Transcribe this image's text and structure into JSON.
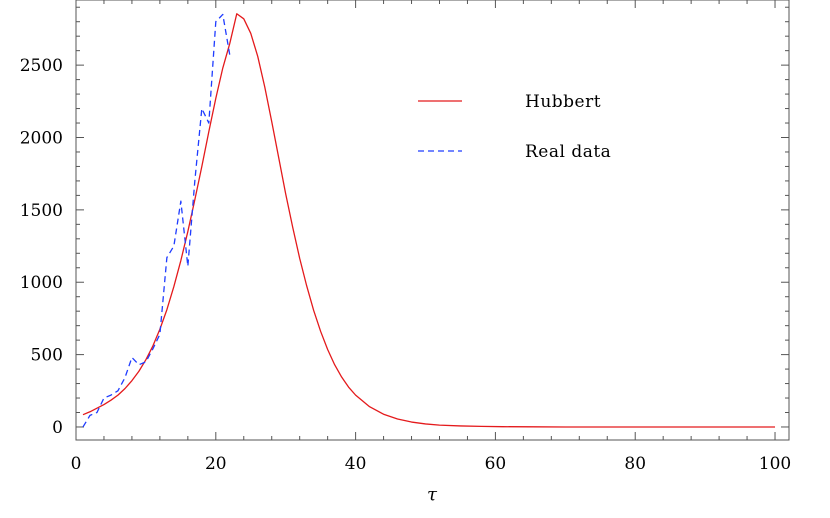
{
  "chart_data": {
    "type": "line",
    "title": "",
    "xlabel": "τ",
    "ylabel": "",
    "xlim": [
      0,
      102
    ],
    "ylim": [
      -90,
      2950
    ],
    "x_ticks": [
      0,
      20,
      40,
      60,
      80,
      100
    ],
    "x_tick_labels": [
      "0",
      "20",
      "40",
      "60",
      "80",
      "100"
    ],
    "y_ticks": [
      0,
      500,
      1000,
      1500,
      2000,
      2500
    ],
    "y_tick_labels": [
      "0",
      "500",
      "1000",
      "1500",
      "2000",
      "2500"
    ],
    "grid": false,
    "legend": "upper-right",
    "series": [
      {
        "name": "Hubbert",
        "style": "solid",
        "color": "#e41a1c",
        "x": [
          1,
          2,
          3,
          4,
          5,
          6,
          7,
          8,
          9,
          10,
          11,
          12,
          13,
          14,
          15,
          16,
          17,
          18,
          19,
          20,
          21,
          22,
          23,
          24,
          25,
          26,
          27,
          28,
          29,
          30,
          31,
          32,
          33,
          34,
          35,
          36,
          37,
          38,
          39,
          40,
          42,
          44,
          46,
          48,
          50,
          52,
          55,
          58,
          61,
          65,
          70,
          75,
          80,
          85,
          90,
          95,
          100
        ],
        "y": [
          85,
          105,
          130,
          155,
          185,
          220,
          265,
          320,
          385,
          465,
          560,
          675,
          810,
          970,
          1150,
          1350,
          1570,
          1800,
          2040,
          2270,
          2480,
          2650,
          2855,
          2820,
          2720,
          2560,
          2350,
          2110,
          1860,
          1610,
          1380,
          1165,
          975,
          805,
          660,
          535,
          430,
          345,
          275,
          220,
          140,
          88,
          55,
          34,
          21,
          13,
          7,
          4,
          2,
          1,
          0,
          0,
          0,
          0,
          0,
          0,
          0
        ]
      },
      {
        "name": "Real data",
        "style": "dashed",
        "color": "#1f3cff",
        "x": [
          1,
          2,
          3,
          4,
          5,
          6,
          7,
          8,
          9,
          10,
          11,
          12,
          13,
          14,
          15,
          16,
          17,
          18,
          19,
          20,
          21,
          22
        ],
        "y": [
          0,
          80,
          100,
          200,
          220,
          250,
          340,
          480,
          430,
          450,
          540,
          640,
          1170,
          1250,
          1560,
          1110,
          1700,
          2200,
          2100,
          2800,
          2850,
          2570
        ]
      }
    ]
  }
}
